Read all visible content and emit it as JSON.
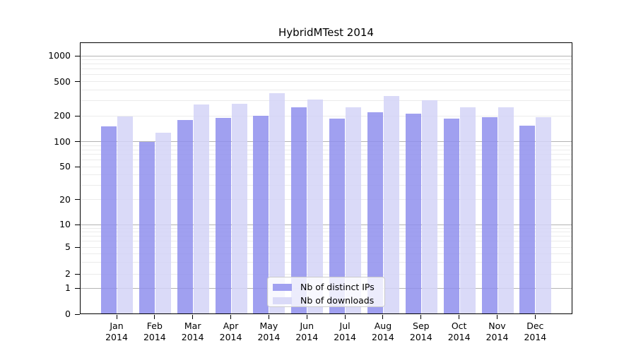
{
  "chart_data": {
    "type": "bar",
    "title": "HybridMTest 2014",
    "categories": [
      "Jan",
      "Feb",
      "Mar",
      "Apr",
      "May",
      "Jun",
      "Jul",
      "Aug",
      "Sep",
      "Oct",
      "Nov",
      "Dec"
    ],
    "x_year": "2014",
    "series": [
      {
        "name": "Nb of distinct IPs",
        "color": "#a0a0f0",
        "values": [
          150,
          100,
          178,
          190,
          199,
          253,
          184,
          219,
          212,
          185,
          193,
          154
        ]
      },
      {
        "name": "Nb of downloads",
        "color": "#dadaf8",
        "values": [
          197,
          128,
          271,
          276,
          368,
          311,
          251,
          338,
          306,
          252,
          249,
          192
        ]
      }
    ],
    "yscale": "symlog",
    "ylim": [
      0,
      1400
    ],
    "yticks": [
      1000,
      500,
      200,
      100,
      50,
      20,
      10,
      5,
      2,
      1,
      0
    ],
    "grid": true,
    "legend_position": "lower center",
    "colors": {
      "major_grid": "#b3b3b3",
      "minor_grid": "#ebebeb",
      "axis": "#000000",
      "text": "#000000",
      "legend_border": "#cccccc",
      "background": "#ffffff"
    }
  }
}
